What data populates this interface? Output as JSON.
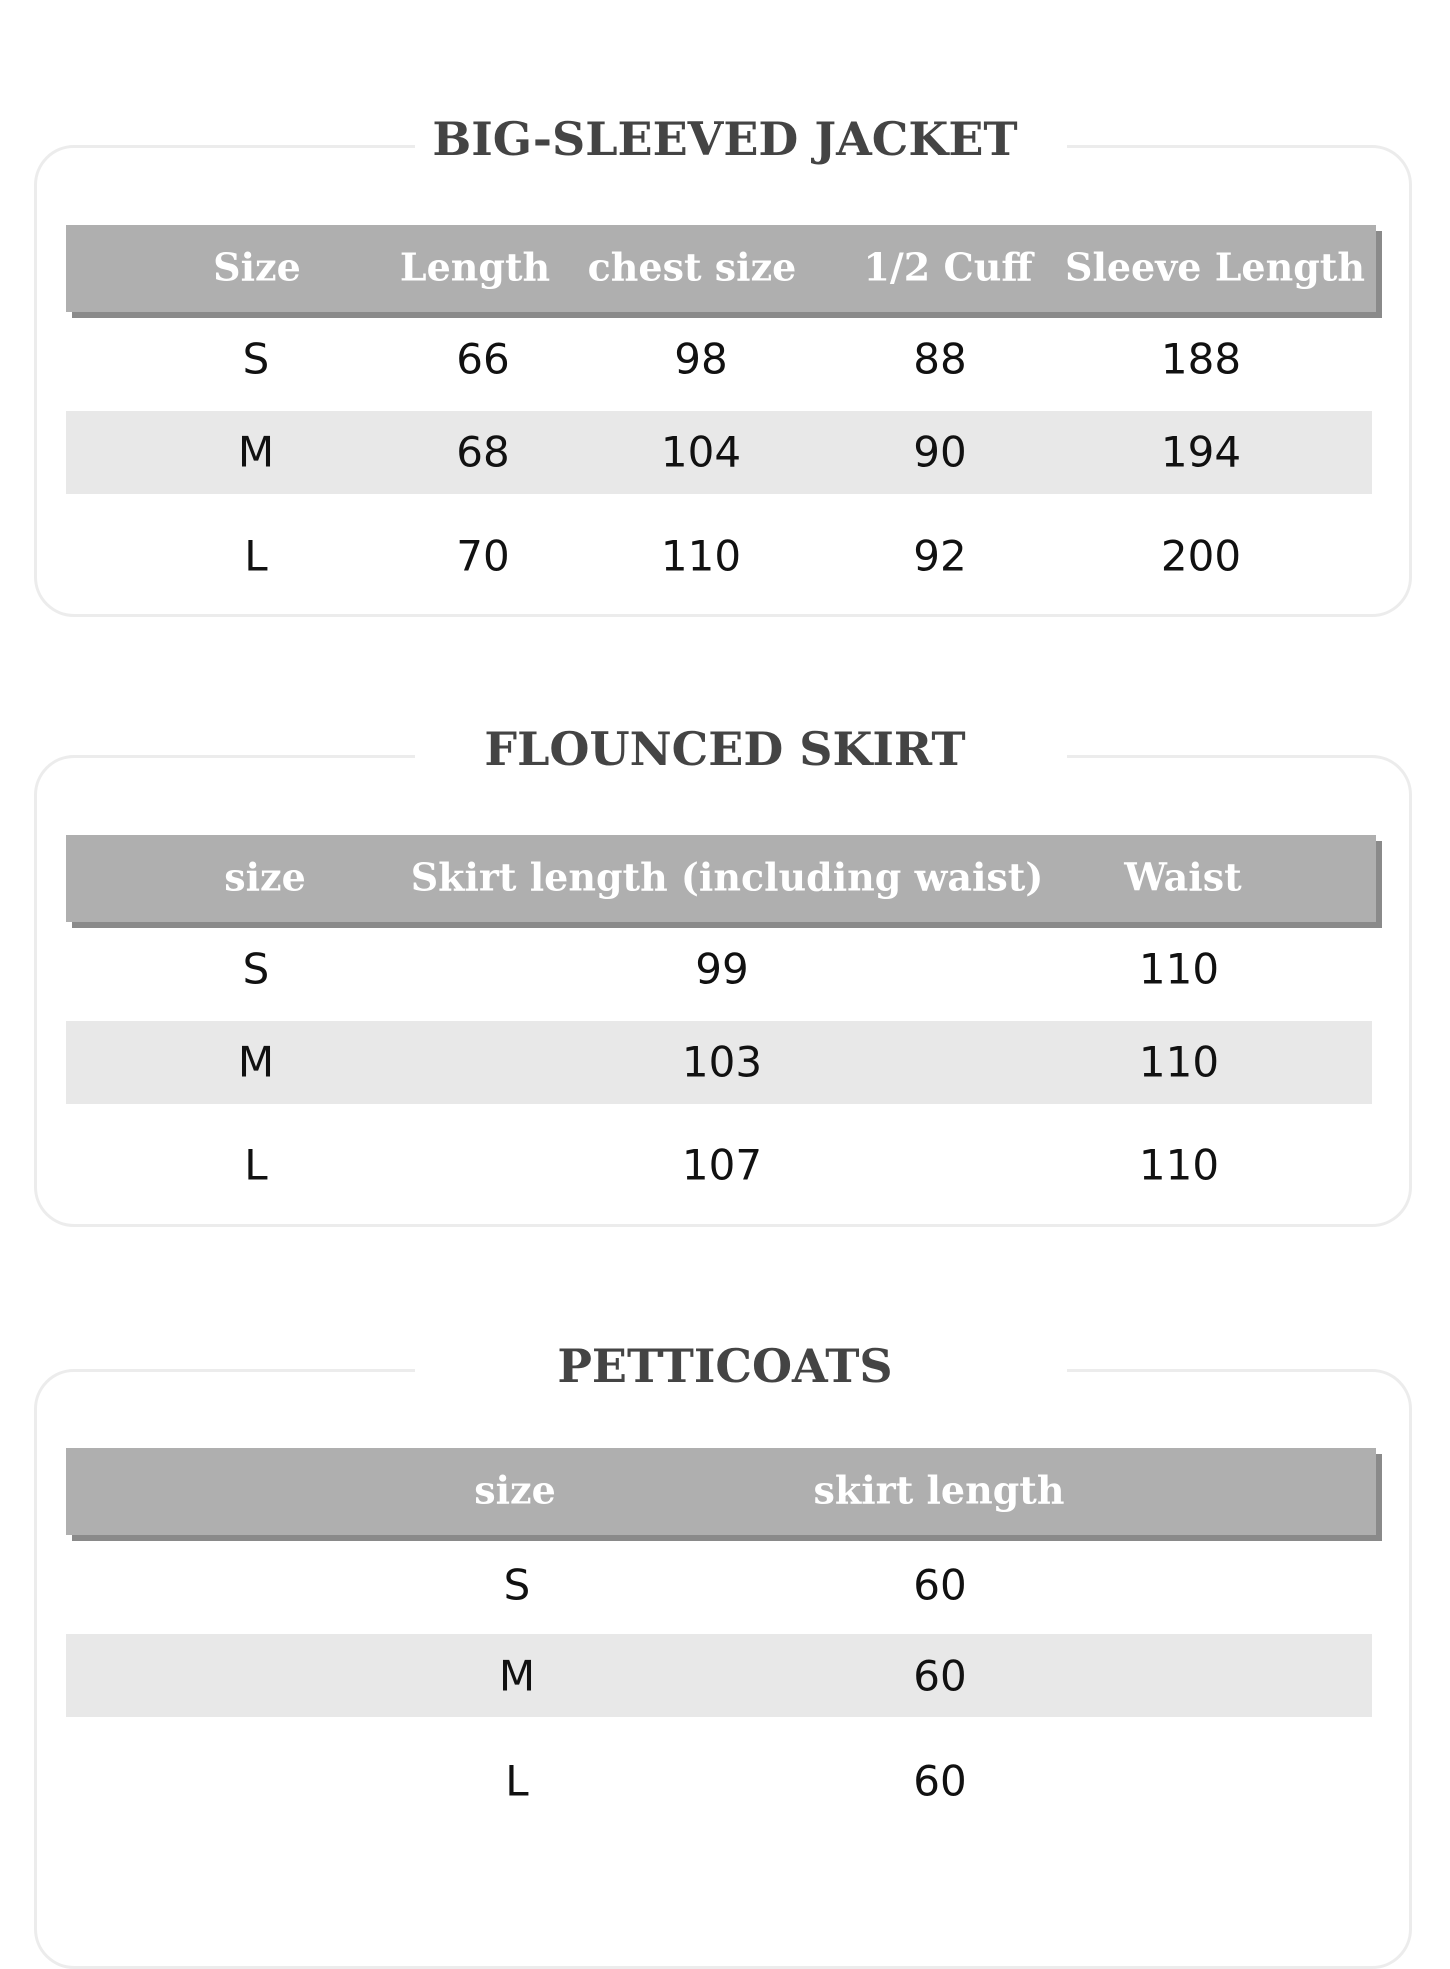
{
  "tables": [
    {
      "title": "BIG-SLEEVED JACKET",
      "headers": [
        "Size",
        "Length",
        "chest size",
        "1/2 Cuff",
        "Sleeve Length"
      ],
      "rows": [
        [
          "S",
          "66",
          "98",
          "88",
          "188"
        ],
        [
          "M",
          "68",
          "104",
          "90",
          "194"
        ],
        [
          "L",
          "70",
          "110",
          "92",
          "200"
        ]
      ]
    },
    {
      "title": "FLOUNCED SKIRT",
      "headers": [
        "size",
        "Skirt length (including waist)",
        "Waist"
      ],
      "rows": [
        [
          "S",
          "99",
          "110"
        ],
        [
          "M",
          "103",
          "110"
        ],
        [
          "L",
          "107",
          "110"
        ]
      ]
    },
    {
      "title": "PETTICOATS",
      "headers": [
        "size",
        "skirt length"
      ],
      "rows": [
        [
          "S",
          "60"
        ],
        [
          "M",
          "60"
        ],
        [
          "L",
          "60"
        ]
      ]
    }
  ],
  "colors": {
    "header_bg": "#afafaf",
    "stripe_bg": "#e8e8e8",
    "title": "#444444"
  }
}
